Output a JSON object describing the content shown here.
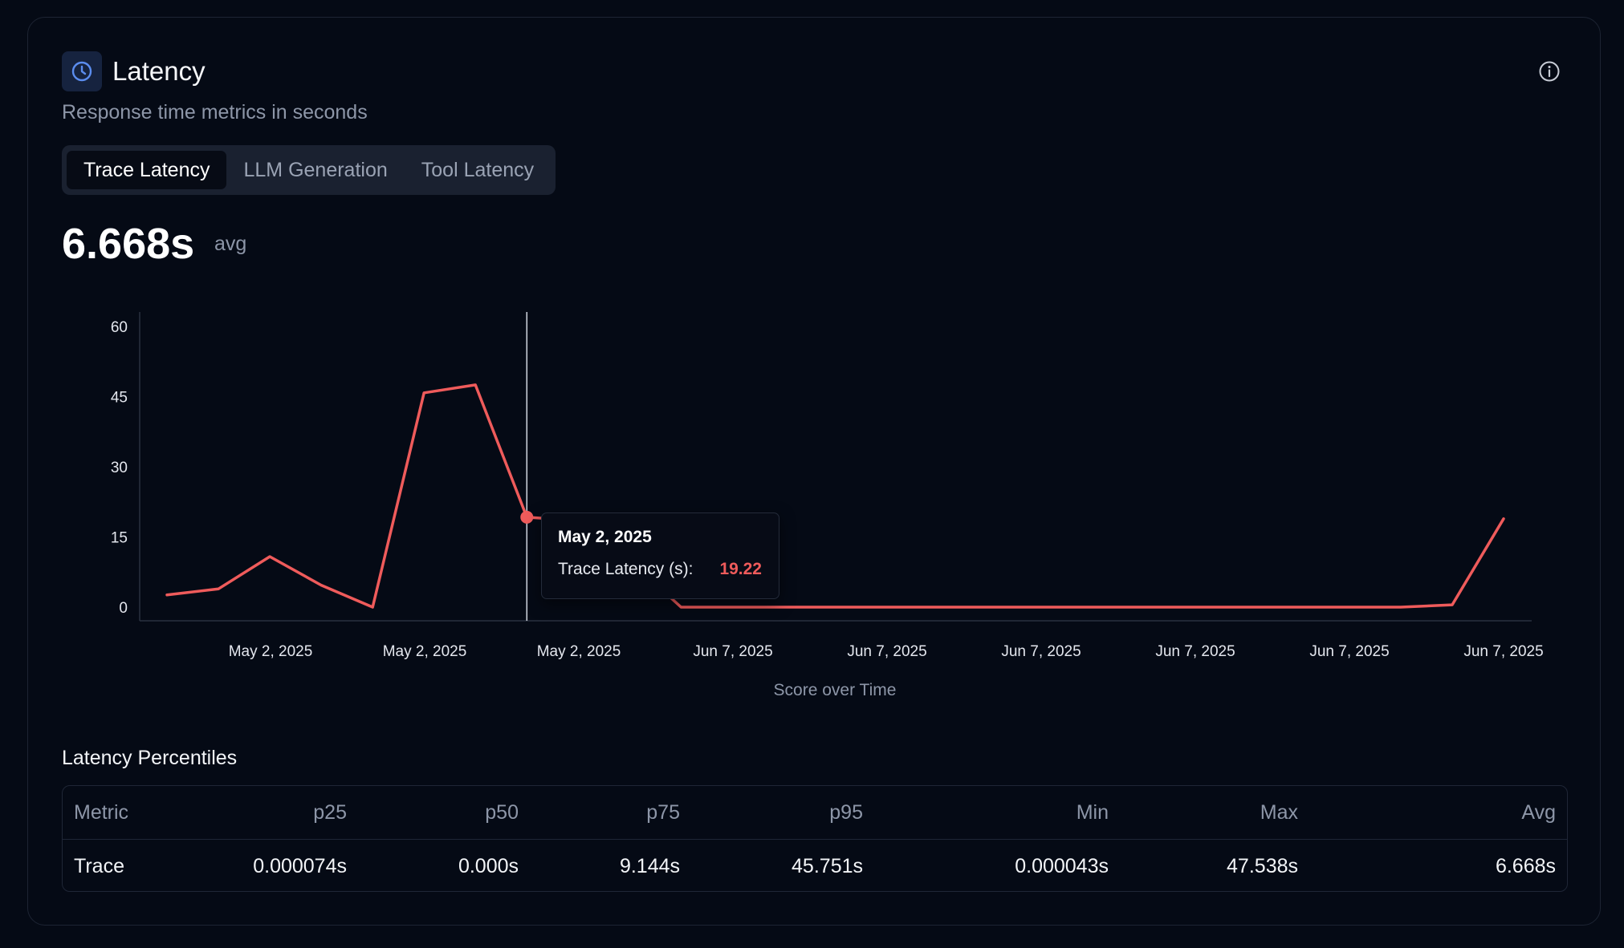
{
  "header": {
    "title": "Latency",
    "subtitle": "Response time metrics in seconds",
    "icon": "clock-icon",
    "info_icon": "info-icon"
  },
  "tabs": [
    {
      "label": "Trace Latency",
      "active": true
    },
    {
      "label": "LLM Generation",
      "active": false
    },
    {
      "label": "Tool Latency",
      "active": false
    }
  ],
  "summary": {
    "value": "6.668s",
    "label": "avg"
  },
  "chart_data": {
    "type": "line",
    "x": [
      "May 2, 2025",
      "May 2, 2025",
      "May 2, 2025",
      "May 2, 2025",
      "May 2, 2025",
      "May 2, 2025",
      "May 2, 2025",
      "May 2, 2025",
      "May 2, 2025",
      "May 2, 2025",
      "Jun 7, 2025",
      "Jun 7, 2025",
      "Jun 7, 2025",
      "Jun 7, 2025",
      "Jun 7, 2025",
      "Jun 7, 2025",
      "Jun 7, 2025",
      "Jun 7, 2025",
      "Jun 7, 2025",
      "Jun 7, 2025",
      "Jun 7, 2025",
      "Jun 7, 2025",
      "Jun 7, 2025",
      "Jun 7, 2025",
      "Jun 7, 2025",
      "Jun 7, 2025",
      "Jun 7, 2025"
    ],
    "series": [
      {
        "name": "Trace Latency (s)",
        "color": "#ef5b5b",
        "values": [
          2.6,
          3.9,
          10.8,
          4.7,
          0.0,
          45.8,
          47.5,
          19.22,
          18.5,
          10.0,
          0.0,
          0.0,
          0.0,
          0.0,
          0.0,
          0.0,
          0.0,
          0.0,
          0.0,
          0.0,
          0.0,
          0.0,
          0.0,
          0.0,
          0.0,
          0.5,
          18.9
        ]
      }
    ],
    "x_tick_labels": [
      "May 2, 2025",
      "May 2, 2025",
      "May 2, 2025",
      "Jun 7, 2025",
      "Jun 7, 2025",
      "Jun 7, 2025",
      "Jun 7, 2025",
      "Jun 7, 2025",
      "Jun 7, 2025"
    ],
    "y_ticks": [
      0,
      15,
      30,
      45,
      60
    ],
    "ylim": [
      0,
      60
    ],
    "xlabel": "Score over Time",
    "ylabel": "",
    "grid": false,
    "tooltip": {
      "date": "May 2, 2025",
      "series": "Trace Latency (s):",
      "value": "19.22"
    }
  },
  "percentiles": {
    "title": "Latency Percentiles",
    "columns": [
      "Metric",
      "p25",
      "p50",
      "p75",
      "p95",
      "Min",
      "Max",
      "Avg"
    ],
    "rows": [
      [
        "Trace",
        "0.000074s",
        "0.000s",
        "9.144s",
        "45.751s",
        "0.000043s",
        "47.538s",
        "6.668s"
      ]
    ]
  }
}
